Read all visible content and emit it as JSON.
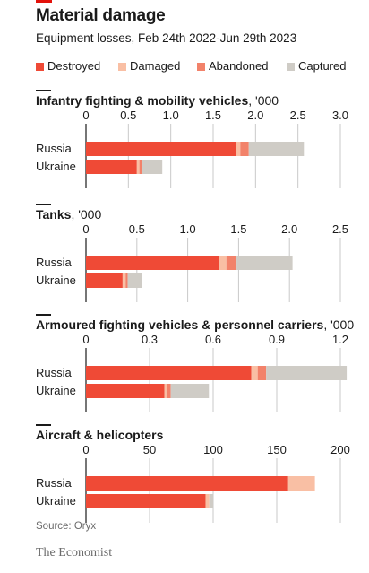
{
  "title": "Material damage",
  "subtitle": "Equipment losses, Feb 24th 2022-Jun 29th 2023",
  "legend": [
    {
      "label": "Destroyed",
      "color": "#ef4a36"
    },
    {
      "label": "Damaged",
      "color": "#f9bfa4"
    },
    {
      "label": "Abandoned",
      "color": "#f2826a"
    },
    {
      "label": "Captured",
      "color": "#cfccc6"
    }
  ],
  "source": "Source: Oryx",
  "brand": "The Economist",
  "chart_data": [
    {
      "type": "bar",
      "stacked": true,
      "orientation": "horizontal",
      "title": "Infantry fighting & mobility vehicles",
      "unit": ", '000",
      "categories": [
        "Russia",
        "Ukraine"
      ],
      "xlim": [
        0,
        3.0
      ],
      "ticks": [
        "0",
        "0.5",
        "1.0",
        "1.5",
        "2.0",
        "2.5",
        "3.0"
      ],
      "tick_values": [
        0,
        0.5,
        1.0,
        1.5,
        2.0,
        2.5,
        3.0
      ],
      "series": [
        {
          "name": "Destroyed",
          "values": [
            1.77,
            0.6
          ]
        },
        {
          "name": "Damaged",
          "values": [
            0.05,
            0.03
          ]
        },
        {
          "name": "Abandoned",
          "values": [
            0.1,
            0.03
          ]
        },
        {
          "name": "Captured",
          "values": [
            0.65,
            0.24
          ]
        }
      ]
    },
    {
      "type": "bar",
      "stacked": true,
      "orientation": "horizontal",
      "title": "Tanks",
      "unit": ", '000",
      "categories": [
        "Russia",
        "Ukraine"
      ],
      "xlim": [
        0,
        2.5
      ],
      "ticks": [
        "0",
        "0.5",
        "1.0",
        "1.5",
        "2.0",
        "2.5"
      ],
      "tick_values": [
        0,
        0.5,
        1.0,
        1.5,
        2.0,
        2.5
      ],
      "series": [
        {
          "name": "Destroyed",
          "values": [
            1.31,
            0.36
          ]
        },
        {
          "name": "Damaged",
          "values": [
            0.07,
            0.03
          ]
        },
        {
          "name": "Abandoned",
          "values": [
            0.1,
            0.02
          ]
        },
        {
          "name": "Captured",
          "values": [
            0.55,
            0.14
          ]
        }
      ]
    },
    {
      "type": "bar",
      "stacked": true,
      "orientation": "horizontal",
      "title": "Armoured fighting vehicles & personnel carriers",
      "unit": ", '000",
      "categories": [
        "Russia",
        "Ukraine"
      ],
      "xlim": [
        0,
        1.2
      ],
      "ticks": [
        "0",
        "0.3",
        "0.6",
        "0.9",
        "1.2"
      ],
      "tick_values": [
        0,
        0.3,
        0.6,
        0.9,
        1.2
      ],
      "series": [
        {
          "name": "Destroyed",
          "values": [
            0.78,
            0.37
          ]
        },
        {
          "name": "Damaged",
          "values": [
            0.03,
            0.01
          ]
        },
        {
          "name": "Abandoned",
          "values": [
            0.04,
            0.02
          ]
        },
        {
          "name": "Captured",
          "values": [
            0.38,
            0.18
          ]
        }
      ]
    },
    {
      "type": "bar",
      "stacked": true,
      "orientation": "horizontal",
      "title": "Aircraft & helicopters",
      "unit": "",
      "categories": [
        "Russia",
        "Ukraine"
      ],
      "xlim": [
        0,
        200
      ],
      "ticks": [
        "0",
        "50",
        "100",
        "150",
        "200"
      ],
      "tick_values": [
        0,
        50,
        100,
        150,
        200
      ],
      "series": [
        {
          "name": "Destroyed",
          "values": [
            159,
            94
          ]
        },
        {
          "name": "Damaged",
          "values": [
            21,
            3
          ]
        },
        {
          "name": "Abandoned",
          "values": [
            0,
            0
          ]
        },
        {
          "name": "Captured",
          "values": [
            0,
            3
          ]
        }
      ]
    }
  ]
}
